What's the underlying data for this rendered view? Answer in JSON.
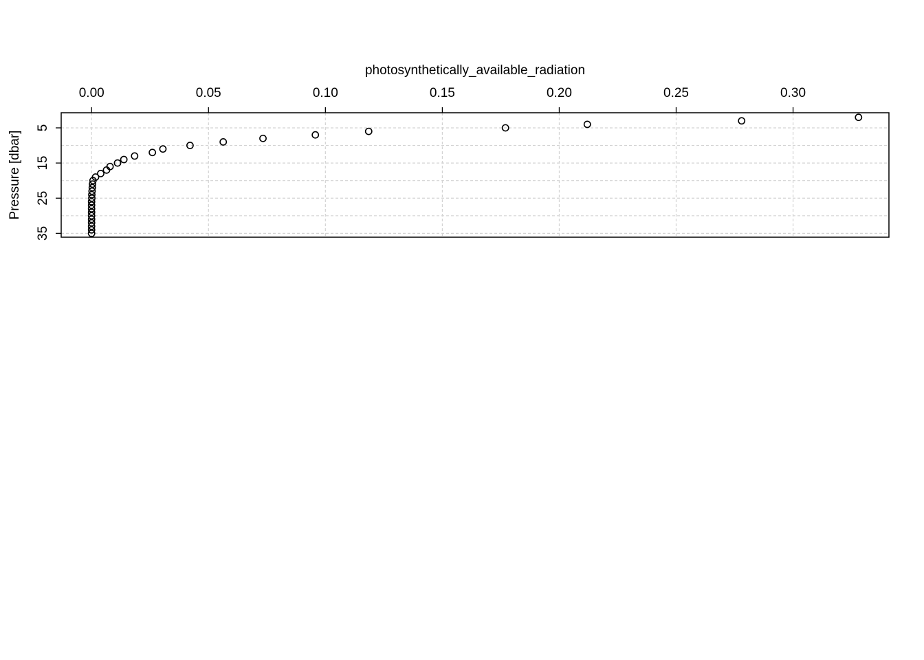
{
  "chart_data": {
    "type": "scatter",
    "title": "photosynthetically_available_radiation",
    "xlabel": "photosynthetically_available_radiation",
    "ylabel": "Pressure [dbar]",
    "x_axis_position": "top",
    "y_axis_reversed": true,
    "xlim": [
      -0.013,
      0.341
    ],
    "ylim": [
      36.1,
      0.7
    ],
    "x_ticks": [
      0.0,
      0.05,
      0.1,
      0.15,
      0.2,
      0.25,
      0.3
    ],
    "x_tick_labels": [
      "0.00",
      "0.05",
      "0.10",
      "0.15",
      "0.20",
      "0.25",
      "0.30"
    ],
    "y_ticks": [
      5,
      15,
      25,
      35
    ],
    "y_tick_labels": [
      "5",
      "15",
      "25",
      "35"
    ],
    "x_grid": [
      0.0,
      0.05,
      0.1,
      0.15,
      0.2,
      0.25,
      0.3
    ],
    "y_grid": [
      5,
      10,
      15,
      20,
      25,
      30,
      35
    ],
    "grid": true,
    "marker": "open-circle",
    "points": [
      {
        "x": 0.328,
        "y": 2
      },
      {
        "x": 0.278,
        "y": 3
      },
      {
        "x": 0.212,
        "y": 4
      },
      {
        "x": 0.177,
        "y": 5
      },
      {
        "x": 0.1185,
        "y": 6
      },
      {
        "x": 0.0957,
        "y": 7
      },
      {
        "x": 0.0733,
        "y": 8
      },
      {
        "x": 0.0563,
        "y": 9
      },
      {
        "x": 0.0421,
        "y": 10
      },
      {
        "x": 0.0305,
        "y": 11
      },
      {
        "x": 0.026,
        "y": 12
      },
      {
        "x": 0.0184,
        "y": 13
      },
      {
        "x": 0.0138,
        "y": 14
      },
      {
        "x": 0.0111,
        "y": 15
      },
      {
        "x": 0.0079,
        "y": 16
      },
      {
        "x": 0.0064,
        "y": 17
      },
      {
        "x": 0.0039,
        "y": 18
      },
      {
        "x": 0.0017,
        "y": 19
      },
      {
        "x": 0.0006,
        "y": 20
      },
      {
        "x": 0.0004,
        "y": 21
      },
      {
        "x": 0.0003,
        "y": 22
      },
      {
        "x": 0.0002,
        "y": 23
      },
      {
        "x": 0.0001,
        "y": 24
      },
      {
        "x": 0.0001,
        "y": 25
      },
      {
        "x": 0.0,
        "y": 26
      },
      {
        "x": 0.0,
        "y": 27
      },
      {
        "x": 0.0,
        "y": 28
      },
      {
        "x": 0.0,
        "y": 29
      },
      {
        "x": 0.0,
        "y": 30
      },
      {
        "x": 0.0,
        "y": 31
      },
      {
        "x": 0.0,
        "y": 32
      },
      {
        "x": 0.0,
        "y": 33
      },
      {
        "x": 0.0,
        "y": 34
      },
      {
        "x": 0.0,
        "y": 35
      }
    ]
  }
}
